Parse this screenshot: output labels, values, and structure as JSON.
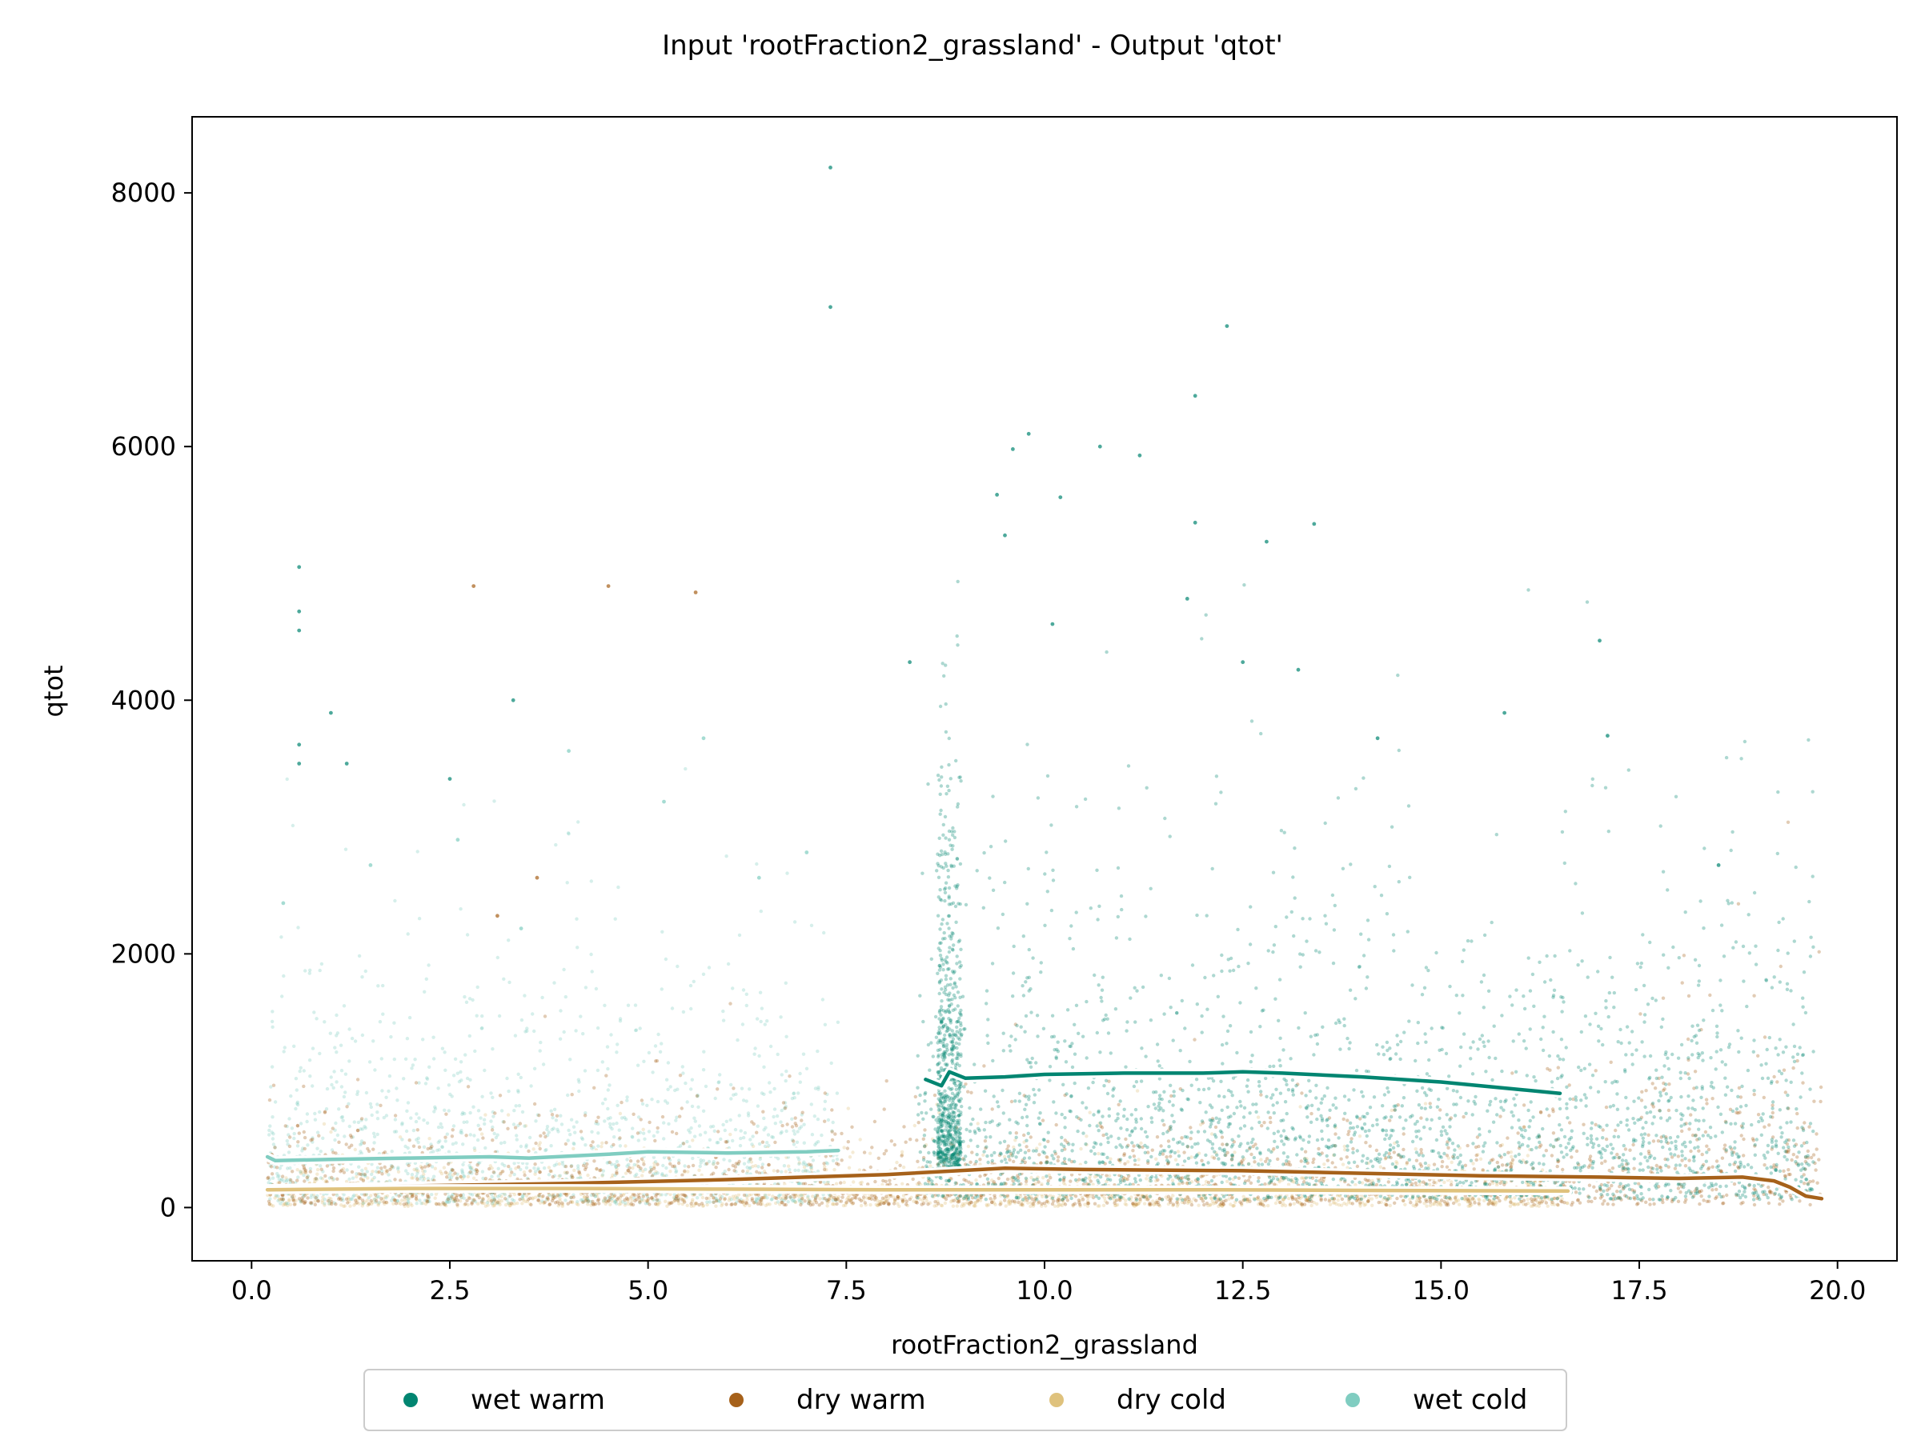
{
  "chart_data": {
    "type": "scatter",
    "title": "Input 'rootFraction2_grassland' - Output 'qtot'",
    "xlabel": "rootFraction2_grassland",
    "ylabel": "qtot",
    "xlim": [
      -0.75,
      20.75
    ],
    "ylim": [
      -420,
      8600
    ],
    "xticks": [
      0.0,
      2.5,
      5.0,
      7.5,
      10.0,
      12.5,
      15.0,
      17.5,
      20.0
    ],
    "xtick_labels": [
      "0.0",
      "2.5",
      "5.0",
      "7.5",
      "10.0",
      "12.5",
      "15.0",
      "17.5",
      "20.0"
    ],
    "yticks": [
      0,
      2000,
      4000,
      6000,
      8000
    ],
    "ytick_labels": [
      "0",
      "2000",
      "4000",
      "6000",
      "8000"
    ],
    "grid": false,
    "legend_position": "bottom-center",
    "series": [
      {
        "name": "wet warm",
        "color": "#018571",
        "trend": {
          "x": [
            8.5,
            8.7,
            8.8,
            9.0,
            9.5,
            10.0,
            11.0,
            12.0,
            12.5,
            13.0,
            14.0,
            15.0,
            16.0,
            16.5
          ],
          "y": [
            1010,
            960,
            1070,
            1020,
            1030,
            1050,
            1060,
            1060,
            1070,
            1060,
            1030,
            990,
            930,
            900
          ]
        },
        "outliers": [
          {
            "x": 7.3,
            "y": 8200
          },
          {
            "x": 7.3,
            "y": 7100
          },
          {
            "x": 12.3,
            "y": 6950
          },
          {
            "x": 11.9,
            "y": 6400
          },
          {
            "x": 9.8,
            "y": 6100
          },
          {
            "x": 9.6,
            "y": 5980
          },
          {
            "x": 10.7,
            "y": 6000
          },
          {
            "x": 11.2,
            "y": 5930
          },
          {
            "x": 9.4,
            "y": 5620
          },
          {
            "x": 10.2,
            "y": 5600
          },
          {
            "x": 11.9,
            "y": 5400
          },
          {
            "x": 13.4,
            "y": 5390
          },
          {
            "x": 9.5,
            "y": 5300
          },
          {
            "x": 12.8,
            "y": 5250
          },
          {
            "x": 11.8,
            "y": 4800
          },
          {
            "x": 10.1,
            "y": 4600
          },
          {
            "x": 12.5,
            "y": 4300
          },
          {
            "x": 17.0,
            "y": 4470
          },
          {
            "x": 13.2,
            "y": 4240
          },
          {
            "x": 15.8,
            "y": 3900
          },
          {
            "x": 17.1,
            "y": 3720
          },
          {
            "x": 14.2,
            "y": 3700
          },
          {
            "x": 8.3,
            "y": 4300
          },
          {
            "x": 0.6,
            "y": 5050
          },
          {
            "x": 0.6,
            "y": 4700
          },
          {
            "x": 0.6,
            "y": 4550
          },
          {
            "x": 1.0,
            "y": 3900
          },
          {
            "x": 0.6,
            "y": 3650
          },
          {
            "x": 0.6,
            "y": 3500
          },
          {
            "x": 1.2,
            "y": 3500
          },
          {
            "x": 2.5,
            "y": 3380
          },
          {
            "x": 3.3,
            "y": 4000
          },
          {
            "x": 18.5,
            "y": 2700
          }
        ]
      },
      {
        "name": "dry warm",
        "color": "#a6611a",
        "trend": {
          "x": [
            0.2,
            2.0,
            4.0,
            6.0,
            8.0,
            9.5,
            10.5,
            12.5,
            14.0,
            15.5,
            17.0,
            18.0,
            18.8,
            19.2,
            19.4,
            19.6,
            19.8
          ],
          "y": [
            150,
            170,
            190,
            220,
            260,
            310,
            300,
            290,
            270,
            250,
            240,
            230,
            240,
            210,
            160,
            90,
            70
          ]
        },
        "outliers": [
          {
            "x": 4.5,
            "y": 4900
          },
          {
            "x": 2.8,
            "y": 4900
          },
          {
            "x": 5.6,
            "y": 4850
          },
          {
            "x": 3.1,
            "y": 2300
          },
          {
            "x": 3.6,
            "y": 2600
          }
        ]
      },
      {
        "name": "dry cold",
        "color": "#dfc27d",
        "trend": {
          "x": [
            0.2,
            2.0,
            4.0,
            6.0,
            8.0,
            10.0,
            12.0,
            14.0,
            16.6
          ],
          "y": [
            140,
            150,
            150,
            145,
            140,
            140,
            140,
            135,
            130
          ]
        },
        "outliers": []
      },
      {
        "name": "wet cold",
        "color": "#80cdc1",
        "trend": {
          "x": [
            0.2,
            0.3,
            1.0,
            2.0,
            3.0,
            3.5,
            4.5,
            5.0,
            6.0,
            7.0,
            7.4
          ],
          "y": [
            400,
            370,
            380,
            390,
            400,
            390,
            420,
            440,
            430,
            440,
            450
          ]
        },
        "outliers": [
          {
            "x": 0.4,
            "y": 2400
          },
          {
            "x": 1.5,
            "y": 2700
          },
          {
            "x": 2.6,
            "y": 2900
          },
          {
            "x": 4.0,
            "y": 3600
          },
          {
            "x": 5.7,
            "y": 3700
          },
          {
            "x": 5.2,
            "y": 3200
          },
          {
            "x": 6.4,
            "y": 2600
          },
          {
            "x": 7.0,
            "y": 2800
          },
          {
            "x": 3.4,
            "y": 2200
          }
        ]
      }
    ]
  }
}
